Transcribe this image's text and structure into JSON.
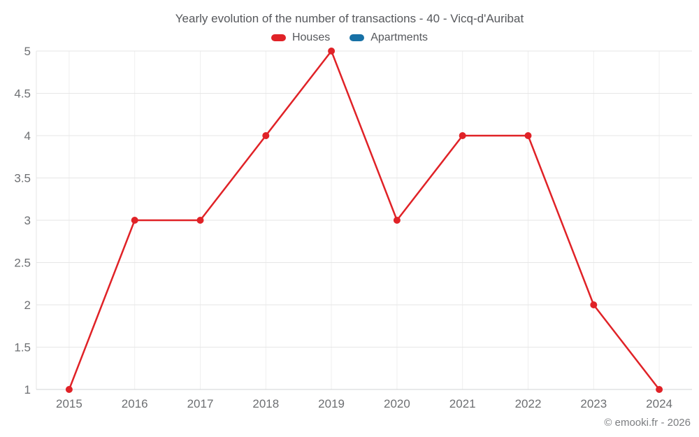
{
  "header": {
    "title": "Yearly evolution of the number of transactions - 40 - Vicq-d'Auribat"
  },
  "legend": {
    "items": [
      {
        "label": "Houses",
        "color": "#e02227"
      },
      {
        "label": "Apartments",
        "color": "#1771a6"
      }
    ]
  },
  "footer": {
    "credit": "© emooki.fr - 2026"
  },
  "colors": {
    "grid_horizontal": "#e6e6e6",
    "grid_vertical": "#efefef",
    "axis_line": "#d2d3d4",
    "tick_text": "#6d6f72",
    "title_text": "#56585c"
  },
  "chart_data": {
    "type": "line",
    "title": "Yearly evolution of the number of transactions - 40 - Vicq-d'Auribat",
    "categories": [
      "2015",
      "2016",
      "2017",
      "2018",
      "2019",
      "2020",
      "2021",
      "2022",
      "2023",
      "2024"
    ],
    "series": [
      {
        "name": "Houses",
        "color": "#e02227",
        "values": [
          1,
          3,
          3,
          4,
          5,
          3,
          4,
          4,
          2,
          1
        ]
      },
      {
        "name": "Apartments",
        "color": "#1771a6",
        "values": []
      }
    ],
    "xlabel": "",
    "ylabel": "",
    "ylim": [
      1,
      5
    ],
    "ytick_step": 0.5,
    "grid": true,
    "legend_position": "top",
    "marker_radius": 5,
    "line_width": 2.5
  }
}
